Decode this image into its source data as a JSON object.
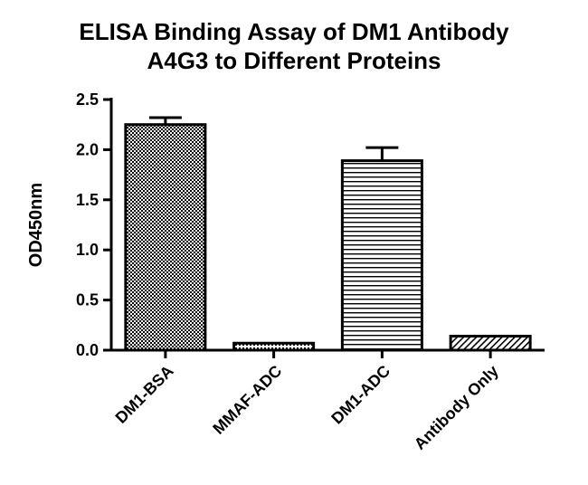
{
  "chart_data": {
    "type": "bar",
    "title_line1": "ELISA Binding Assay of DM1 Antibody",
    "title_line2": "A4G3 to Different Proteins",
    "xlabel": "",
    "ylabel": "OD450nm",
    "ylim": [
      0,
      2.5
    ],
    "yticks": [
      "0.0",
      "0.5",
      "1.0",
      "1.5",
      "2.0",
      "2.5"
    ],
    "categories": [
      "DM1-BSA",
      "MMAF-ADC",
      "DM1-ADC",
      "Antibody Only"
    ],
    "values": [
      2.25,
      0.07,
      1.89,
      0.14
    ],
    "errors": [
      0.07,
      0.0,
      0.13,
      0.0
    ],
    "patterns": [
      "checker",
      "dots",
      "horizontal-lines",
      "diagonal-lines"
    ],
    "bar_color": "#000000",
    "grid": false,
    "legend": "none"
  }
}
